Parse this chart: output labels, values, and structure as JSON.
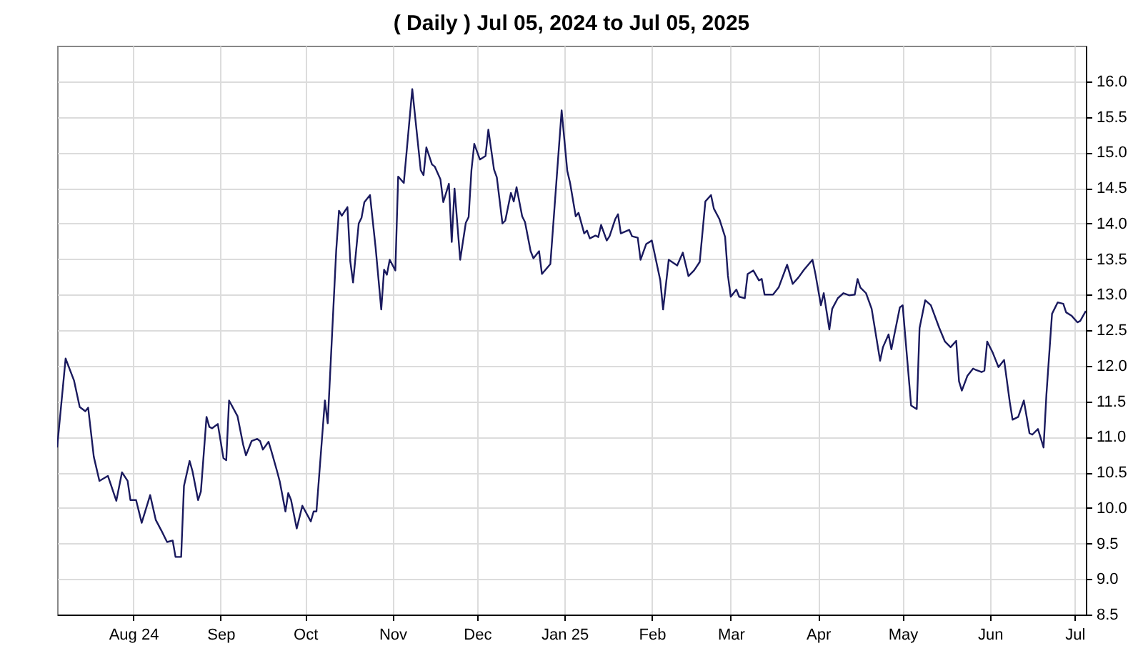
{
  "chart_data": {
    "type": "line",
    "title": "( Daily ) Jul 05, 2024 to Jul 05, 2025",
    "x": [
      "2024-07-05",
      "2024-07-08",
      "2024-07-11",
      "2024-07-13",
      "2024-07-15",
      "2024-07-16",
      "2024-07-18",
      "2024-07-20",
      "2024-07-23",
      "2024-07-26",
      "2024-07-28",
      "2024-07-30",
      "2024-07-31",
      "2024-08-02",
      "2024-08-04",
      "2024-08-07",
      "2024-08-09",
      "2024-08-11",
      "2024-08-13",
      "2024-08-15",
      "2024-08-16",
      "2024-08-18",
      "2024-08-19",
      "2024-08-21",
      "2024-08-22",
      "2024-08-24",
      "2024-08-25",
      "2024-08-27",
      "2024-08-28",
      "2024-08-29",
      "2024-08-31",
      "2024-09-02",
      "2024-09-03",
      "2024-09-04",
      "2024-09-07",
      "2024-09-09",
      "2024-09-10",
      "2024-09-12",
      "2024-09-14",
      "2024-09-15",
      "2024-09-16",
      "2024-09-18",
      "2024-09-19",
      "2024-09-21",
      "2024-09-22",
      "2024-09-24",
      "2024-09-25",
      "2024-09-26",
      "2024-09-28",
      "2024-09-30",
      "2024-10-03",
      "2024-10-04",
      "2024-10-05",
      "2024-10-07",
      "2024-10-08",
      "2024-10-09",
      "2024-10-12",
      "2024-10-13",
      "2024-10-14",
      "2024-10-16",
      "2024-10-17",
      "2024-10-18",
      "2024-10-20",
      "2024-10-21",
      "2024-10-22",
      "2024-10-24",
      "2024-10-26",
      "2024-10-28",
      "2024-10-29",
      "2024-10-30",
      "2024-10-31",
      "2024-11-02",
      "2024-11-03",
      "2024-11-05",
      "2024-11-08",
      "2024-11-11",
      "2024-11-12",
      "2024-11-13",
      "2024-11-15",
      "2024-11-16",
      "2024-11-18",
      "2024-11-19",
      "2024-11-21",
      "2024-11-22",
      "2024-11-23",
      "2024-11-25",
      "2024-11-27",
      "2024-11-28",
      "2024-11-29",
      "2024-11-30",
      "2024-12-02",
      "2024-12-04",
      "2024-12-05",
      "2024-12-07",
      "2024-12-08",
      "2024-12-10",
      "2024-12-11",
      "2024-12-13",
      "2024-12-14",
      "2024-12-15",
      "2024-12-17",
      "2024-12-18",
      "2024-12-20",
      "2024-12-21",
      "2024-12-23",
      "2024-12-24",
      "2024-12-27",
      "2024-12-31",
      "2025-01-02",
      "2025-01-03",
      "2025-01-05",
      "2025-01-06",
      "2025-01-08",
      "2025-01-09",
      "2025-01-10",
      "2025-01-12",
      "2025-01-13",
      "2025-01-14",
      "2025-01-16",
      "2025-01-17",
      "2025-01-19",
      "2025-01-20",
      "2025-01-21",
      "2025-01-24",
      "2025-01-25",
      "2025-01-27",
      "2025-01-28",
      "2025-01-30",
      "2025-02-01",
      "2025-02-04",
      "2025-02-05",
      "2025-02-07",
      "2025-02-10",
      "2025-02-12",
      "2025-02-14",
      "2025-02-16",
      "2025-02-18",
      "2025-02-20",
      "2025-02-22",
      "2025-02-23",
      "2025-02-25",
      "2025-02-27",
      "2025-02-28",
      "2025-03-01",
      "2025-03-03",
      "2025-03-04",
      "2025-03-06",
      "2025-03-07",
      "2025-03-09",
      "2025-03-11",
      "2025-03-12",
      "2025-03-13",
      "2025-03-16",
      "2025-03-18",
      "2025-03-21",
      "2025-03-23",
      "2025-03-25",
      "2025-03-27",
      "2025-03-30",
      "2025-03-31",
      "2025-04-02",
      "2025-04-03",
      "2025-04-05",
      "2025-04-06",
      "2025-04-08",
      "2025-04-10",
      "2025-04-12",
      "2025-04-14",
      "2025-04-15",
      "2025-04-16",
      "2025-04-18",
      "2025-04-20",
      "2025-04-23",
      "2025-04-24",
      "2025-04-26",
      "2025-04-27",
      "2025-04-30",
      "2025-05-01",
      "2025-05-04",
      "2025-05-06",
      "2025-05-07",
      "2025-05-09",
      "2025-05-11",
      "2025-05-14",
      "2025-05-16",
      "2025-05-18",
      "2025-05-20",
      "2025-05-21",
      "2025-05-22",
      "2025-05-24",
      "2025-05-26",
      "2025-05-27",
      "2025-05-29",
      "2025-05-30",
      "2025-05-31",
      "2025-06-02",
      "2025-06-04",
      "2025-06-06",
      "2025-06-08",
      "2025-06-09",
      "2025-06-11",
      "2025-06-13",
      "2025-06-15",
      "2025-06-16",
      "2025-06-18",
      "2025-06-20",
      "2025-06-21",
      "2025-06-23",
      "2025-06-25",
      "2025-06-27",
      "2025-06-28",
      "2025-06-30",
      "2025-07-02",
      "2025-07-03",
      "2025-07-05"
    ],
    "series": [
      {
        "color": "#1a1a5e",
        "values": [
          10.85,
          12.1,
          11.79,
          11.42,
          11.36,
          11.41,
          10.72,
          10.38,
          10.45,
          10.1,
          10.5,
          10.38,
          10.11,
          10.11,
          9.79,
          10.18,
          9.83,
          9.68,
          9.52,
          9.54,
          9.31,
          9.31,
          10.31,
          10.66,
          10.52,
          10.11,
          10.23,
          11.28,
          11.14,
          11.12,
          11.18,
          10.7,
          10.67,
          11.51,
          11.29,
          10.89,
          10.74,
          10.94,
          10.97,
          10.94,
          10.82,
          10.93,
          10.8,
          10.52,
          10.37,
          9.95,
          10.21,
          10.11,
          9.71,
          10.03,
          9.81,
          9.95,
          9.95,
          10.99,
          11.51,
          11.19,
          13.61,
          14.18,
          14.11,
          14.23,
          13.47,
          13.17,
          14.0,
          14.08,
          14.3,
          14.4,
          13.66,
          12.79,
          13.35,
          13.28,
          13.49,
          13.34,
          14.66,
          14.57,
          15.89,
          14.75,
          14.68,
          15.07,
          14.83,
          14.8,
          14.62,
          14.3,
          14.56,
          13.74,
          14.49,
          13.49,
          14.01,
          14.09,
          14.75,
          15.12,
          14.9,
          14.95,
          15.32,
          14.76,
          14.65,
          14.0,
          14.04,
          14.43,
          14.31,
          14.51,
          14.1,
          14.02,
          13.61,
          13.51,
          13.61,
          13.29,
          13.43,
          15.59,
          14.74,
          14.57,
          14.1,
          14.15,
          13.86,
          13.9,
          13.79,
          13.83,
          13.81,
          13.98,
          13.76,
          13.82,
          14.06,
          14.13,
          13.86,
          13.91,
          13.82,
          13.8,
          13.49,
          13.71,
          13.76,
          13.2,
          12.79,
          13.49,
          13.41,
          13.59,
          13.26,
          13.34,
          13.46,
          14.31,
          14.4,
          14.21,
          14.06,
          13.81,
          13.27,
          12.97,
          13.07,
          12.97,
          12.95,
          13.29,
          13.34,
          13.2,
          13.22,
          13.0,
          13.0,
          13.1,
          13.42,
          13.15,
          13.24,
          13.35,
          13.49,
          13.3,
          12.85,
          13.02,
          12.51,
          12.8,
          12.95,
          13.02,
          12.99,
          13.0,
          13.22,
          13.1,
          13.02,
          12.8,
          12.07,
          12.26,
          12.44,
          12.23,
          12.82,
          12.85,
          11.44,
          11.39,
          12.53,
          12.92,
          12.85,
          12.53,
          12.34,
          12.26,
          12.35,
          11.78,
          11.65,
          11.86,
          11.96,
          11.94,
          11.91,
          11.93,
          12.34,
          12.18,
          11.98,
          12.08,
          11.49,
          11.24,
          11.28,
          11.51,
          11.05,
          11.03,
          11.11,
          10.85,
          11.59,
          12.73,
          12.89,
          12.87,
          12.75,
          12.7,
          12.61,
          12.63,
          12.77
        ]
      }
    ],
    "xlim": [
      "2024-07-05",
      "2025-07-05"
    ],
    "xticks": [
      {
        "value": "2024-08-01",
        "label": "Aug 24"
      },
      {
        "value": "2024-09-01",
        "label": "Sep"
      },
      {
        "value": "2024-10-01",
        "label": "Oct"
      },
      {
        "value": "2024-11-01",
        "label": "Nov"
      },
      {
        "value": "2024-12-01",
        "label": "Dec"
      },
      {
        "value": "2025-01-01",
        "label": "Jan 25"
      },
      {
        "value": "2025-02-01",
        "label": "Feb"
      },
      {
        "value": "2025-03-01",
        "label": "Mar"
      },
      {
        "value": "2025-04-01",
        "label": "Apr"
      },
      {
        "value": "2025-05-01",
        "label": "May"
      },
      {
        "value": "2025-06-01",
        "label": "Jun"
      },
      {
        "value": "2025-07-01",
        "label": "Jul"
      }
    ],
    "ylim": [
      8.5,
      16.5
    ],
    "yticks": [
      8.5,
      {
        "value": 9,
        "label": "9.0"
      },
      9.5,
      {
        "value": 10,
        "label": "10.0"
      },
      10.5,
      {
        "value": 11,
        "label": "11.0"
      },
      11.5,
      {
        "value": 12,
        "label": "12.0"
      },
      12.5,
      {
        "value": 13,
        "label": "13.0"
      },
      13.5,
      {
        "value": 14,
        "label": "14.0"
      },
      14.5,
      {
        "value": 15,
        "label": "15.0"
      },
      15.5,
      {
        "value": 16,
        "label": "16.0"
      }
    ],
    "grid": true
  }
}
